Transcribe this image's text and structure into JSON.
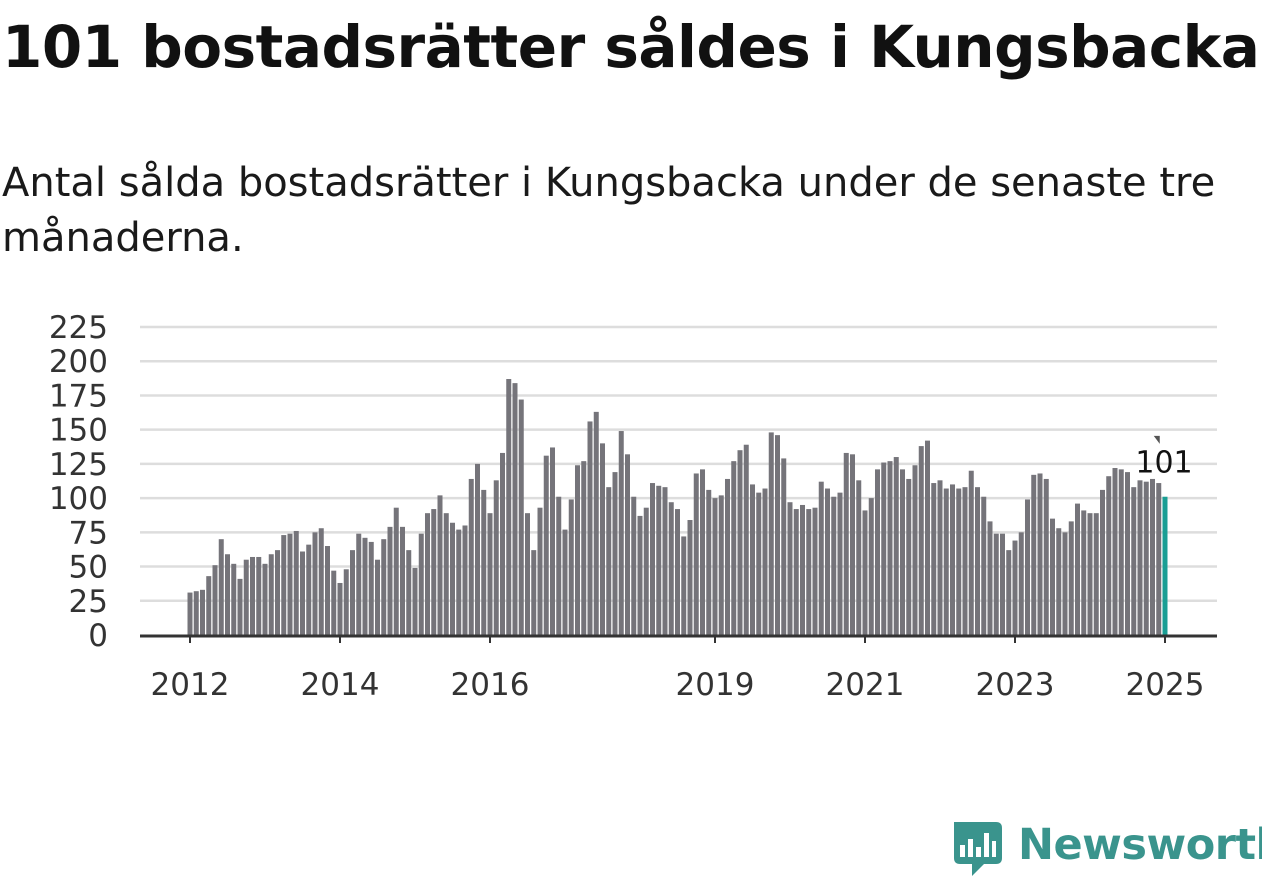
{
  "header": {
    "title": "101 bostadsrätter såldes i Kungsbacka",
    "subtitle": "Antal sålda bostadsrätter i Kungsbacka under de senaste tre månaderna."
  },
  "brand": {
    "name": "Newsworthy",
    "color": "#3a948d",
    "icon": "chart-speech-bubble-icon"
  },
  "chart_data": {
    "type": "bar",
    "title": "101 bostadsrätter såldes i Kungsbacka",
    "subtitle": "Antal sålda bostadsrätter i Kungsbacka under de senaste tre månaderna.",
    "xlabel": "",
    "ylabel": "",
    "ylim": [
      0,
      225
    ],
    "yticks": [
      0,
      25,
      50,
      75,
      100,
      125,
      150,
      175,
      200,
      225
    ],
    "xticks": [
      {
        "label": "2012",
        "index": 0
      },
      {
        "label": "2014",
        "index": 24
      },
      {
        "label": "2016",
        "index": 48
      },
      {
        "label": "2019",
        "index": 84
      },
      {
        "label": "2021",
        "index": 108
      },
      {
        "label": "2023",
        "index": 132
      },
      {
        "label": "2025",
        "index": 156
      }
    ],
    "grid": true,
    "legend": "none",
    "bar_color": "#75747a",
    "highlight_color": "#1a9e94",
    "highlight_label": "101",
    "reference_marker_value": 144,
    "series": [
      {
        "values": [
          31,
          32,
          33,
          43,
          51,
          70,
          59,
          52,
          41,
          55,
          57,
          57,
          52,
          59,
          62,
          73,
          74,
          76,
          61,
          66,
          75,
          78,
          65,
          47,
          38,
          48,
          62,
          74,
          71,
          68,
          55,
          70,
          79,
          93,
          79,
          62,
          49,
          74,
          89,
          92,
          102,
          89,
          82,
          77,
          80,
          114,
          125,
          106,
          89,
          113,
          133,
          187,
          184,
          172,
          89,
          62,
          93,
          131,
          137,
          101,
          77,
          99,
          124,
          127,
          156,
          163,
          140,
          108,
          119,
          149,
          132,
          101,
          87,
          93,
          111,
          109,
          108,
          97,
          92,
          72,
          84,
          118,
          121,
          106,
          100,
          102,
          114,
          127,
          135,
          139,
          110,
          104,
          107,
          148,
          146,
          129,
          97,
          92,
          95,
          92,
          93,
          112,
          107,
          101,
          104,
          133,
          132,
          113,
          91,
          100,
          121,
          126,
          127,
          130,
          121,
          114,
          124,
          138,
          142,
          111,
          113,
          107,
          110,
          107,
          108,
          120,
          108,
          101,
          83,
          74,
          74,
          62,
          69,
          75,
          99,
          117,
          118,
          114,
          85,
          78,
          75,
          83,
          96,
          91,
          89,
          89,
          106,
          116,
          122,
          121,
          119,
          108,
          113,
          112,
          114,
          111,
          101
        ]
      }
    ]
  }
}
